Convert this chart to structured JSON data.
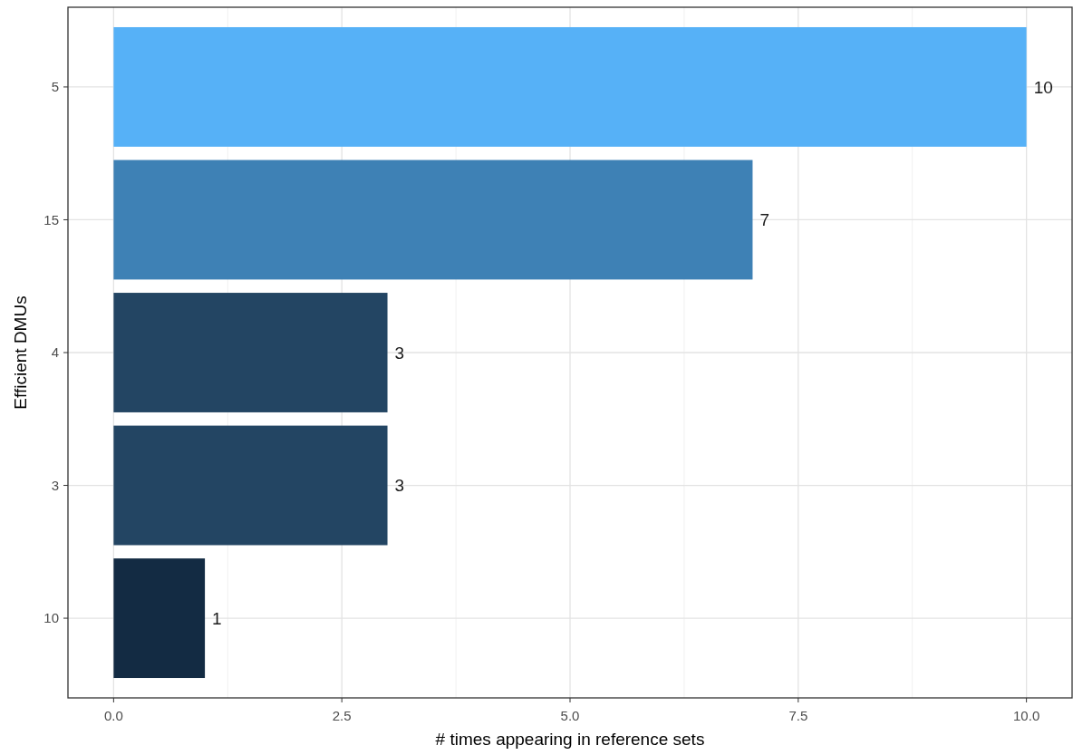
{
  "chart_data": {
    "type": "bar",
    "orientation": "horizontal",
    "xlabel": "# times appearing in reference sets",
    "ylabel": "Efficient DMUs",
    "categories": [
      "5",
      "15",
      "4",
      "3",
      "10"
    ],
    "values": [
      10,
      7,
      3,
      3,
      1
    ],
    "colors": [
      "#56b1f7",
      "#3e81b5",
      "#234563",
      "#234563",
      "#132b43"
    ],
    "xlim": [
      -0.5,
      10.5
    ],
    "xticks": [
      {
        "value": 0,
        "label": "0.0"
      },
      {
        "value": 2.5,
        "label": "2.5"
      },
      {
        "value": 5,
        "label": "5.0"
      },
      {
        "value": 7.5,
        "label": "7.5"
      },
      {
        "value": 10,
        "label": "10.0"
      }
    ],
    "grid": true,
    "data_labels": true
  }
}
